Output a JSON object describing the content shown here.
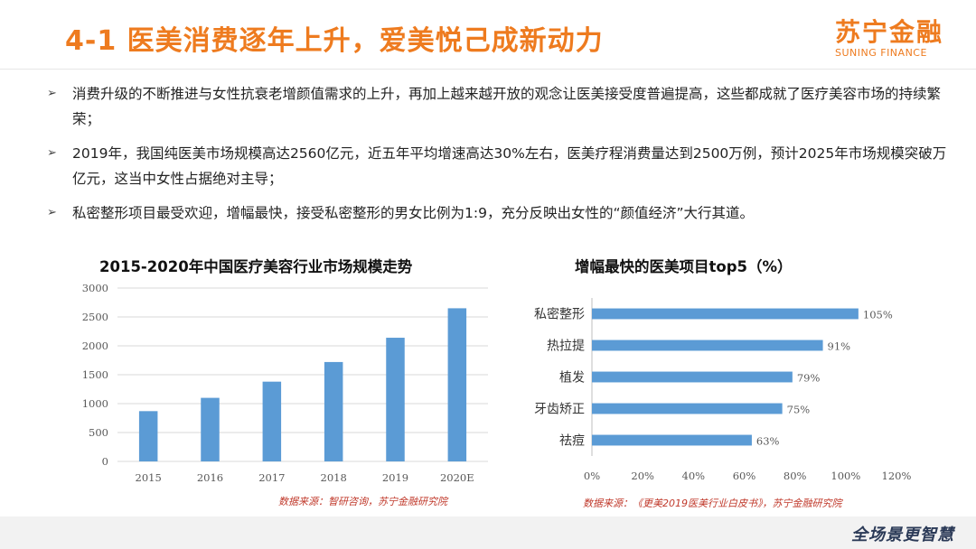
{
  "header": {
    "title": "4-1 医美消费逐年上升，爱美悦己成新动力",
    "logo_cn": "苏宁金融",
    "logo_en": "SUNING FINANCE"
  },
  "bullets": [
    "消费升级的不断推进与女性抗衰老增颜值需求的上升，再加上越来越开放的观念让医美接受度普遍提高，这些都成就了医疗美容市场的持续繁荣；",
    "2019年，我国纯医美市场规模高达2560亿元，近五年平均增速高达30%左右，医美疗程消费量达到2500万例，预计2025年市场规模突破万亿元，这当中女性占据绝对主导；",
    "私密整形项目最受欢迎，增幅最快，接受私密整形的男女比例为1:9，充分反映出女性的“颜值经济”大行其道。"
  ],
  "chart_data": [
    {
      "type": "bar",
      "title": "2015-2020年中国医疗美容行业市场规模走势",
      "categories": [
        "2015",
        "2016",
        "2017",
        "2018",
        "2019",
        "2020E"
      ],
      "values": [
        870,
        1100,
        1380,
        1720,
        2140,
        2650
      ],
      "ylim": [
        0,
        3000
      ],
      "yticks": [
        0,
        500,
        1000,
        1500,
        2000,
        2500,
        3000
      ],
      "grid": true,
      "color": "#5b9bd5",
      "source": "数据来源：智研咨询，苏宁金融研究院"
    },
    {
      "type": "bar",
      "orientation": "horizontal",
      "title": "增幅最快的医美项目top5（%）",
      "categories": [
        "私密整形",
        "热拉提",
        "植发",
        "牙齿矫正",
        "祛痘"
      ],
      "values": [
        105,
        91,
        79,
        75,
        63
      ],
      "data_labels": [
        "105%",
        "91%",
        "79%",
        "75%",
        "63%"
      ],
      "xlim": [
        0,
        120
      ],
      "xticks": [
        "0%",
        "20%",
        "40%",
        "60%",
        "80%",
        "100%",
        "120%"
      ],
      "grid": false,
      "color": "#5b9bd5",
      "source": "数据来源：《更美2019医美行业白皮书》，苏宁金融研究院"
    }
  ],
  "footer": {
    "slogan": "全场景更智慧"
  }
}
